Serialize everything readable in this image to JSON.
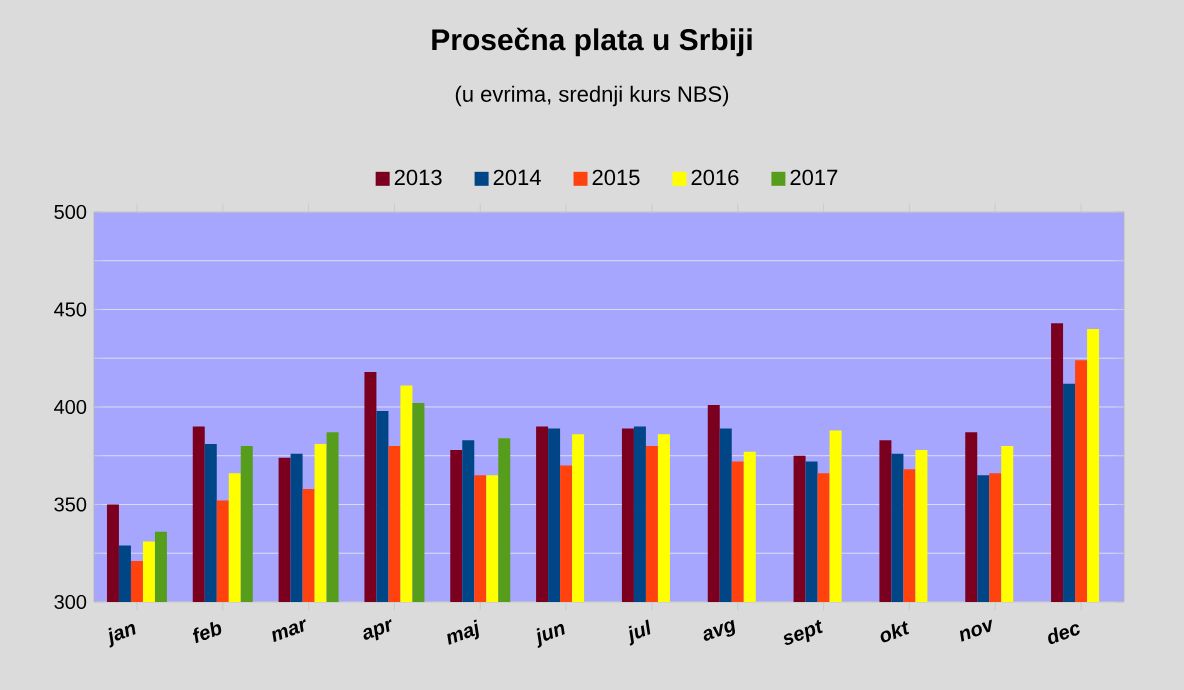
{
  "chart_data": {
    "type": "bar",
    "title": "Prosečna plata u Srbiji",
    "subtitle": "(u evrima, srednji kurs NBS)",
    "categories": [
      "jan",
      "feb",
      "mar",
      "apr",
      "maj",
      "jun",
      "jul",
      "avg",
      "sept",
      "okt",
      "nov",
      "dec"
    ],
    "series": [
      {
        "name": "2013",
        "color": "#7b0020",
        "values": [
          350,
          390,
          374,
          418,
          378,
          390,
          389,
          401,
          375,
          383,
          387,
          443
        ]
      },
      {
        "name": "2014",
        "color": "#004586",
        "values": [
          329,
          381,
          376,
          398,
          383,
          389,
          390,
          389,
          372,
          376,
          365,
          412
        ]
      },
      {
        "name": "2015",
        "color": "#ff420e",
        "values": [
          321,
          352,
          358,
          380,
          365,
          370,
          380,
          372,
          366,
          368,
          366,
          424
        ]
      },
      {
        "name": "2016",
        "color": "#ffff00",
        "values": [
          331,
          366,
          381,
          411,
          365,
          386,
          386,
          377,
          388,
          378,
          380,
          440
        ]
      },
      {
        "name": "2017",
        "color": "#579d1c",
        "values": [
          336,
          380,
          387,
          402,
          384,
          null,
          null,
          null,
          null,
          null,
          null,
          null
        ]
      }
    ],
    "ylim": [
      300,
      500
    ],
    "yticks": [
      300,
      {
        "value": 325,
        "label": null
      },
      350,
      {
        "value": 375,
        "label": null
      },
      400,
      {
        "value": 425,
        "label": null
      },
      450,
      {
        "value": 475,
        "label": null
      },
      500
    ],
    "grid": "y",
    "legend": "top"
  }
}
